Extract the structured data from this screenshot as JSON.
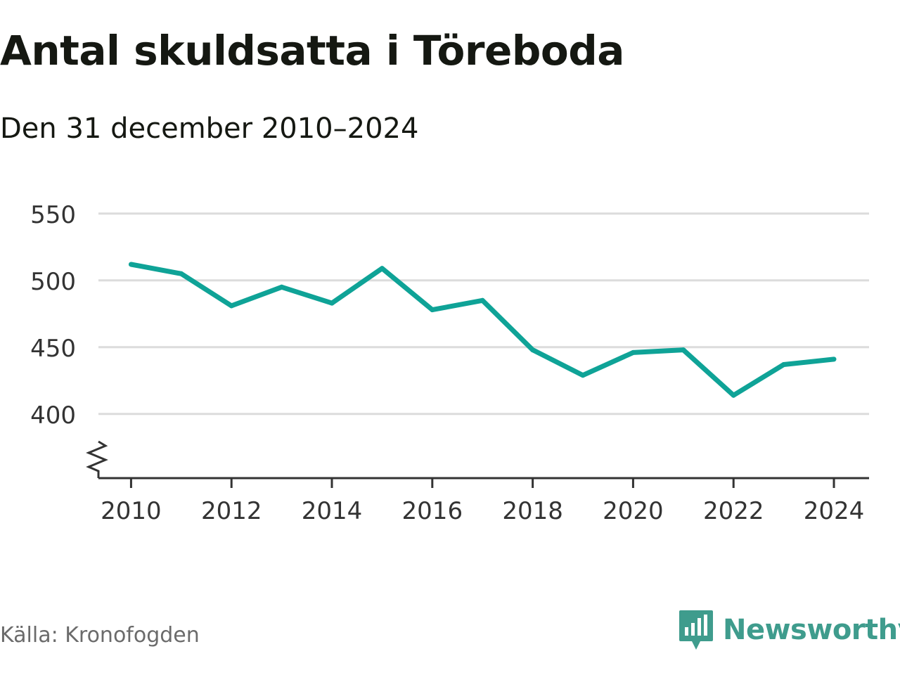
{
  "title": "Antal skuldsatta i Töreboda",
  "subtitle": "Den 31 december 2010–2024",
  "source": "Källa: Kronofogden",
  "brand": {
    "name": "Newsworthy",
    "icon": "newsworthy-logo-icon",
    "color": "#3f9c8d"
  },
  "colors": {
    "line": "#0fa397",
    "grid": "#dcdcdc",
    "axis": "#333333",
    "tick_label": "#333333"
  },
  "chart_data": {
    "type": "line",
    "x": [
      2010,
      2011,
      2012,
      2013,
      2014,
      2015,
      2016,
      2017,
      2018,
      2019,
      2020,
      2021,
      2022,
      2023,
      2024
    ],
    "series": [
      {
        "values": [
          512,
          505,
          481,
          495,
          483,
          509,
          478,
          485,
          448,
          429,
          446,
          448,
          414,
          437,
          441
        ]
      }
    ],
    "x_ticks": [
      2010,
      2012,
      2014,
      2016,
      2018,
      2020,
      2022,
      2024
    ],
    "x_tick_labels": [
      "2010",
      "2012",
      "2014",
      "2016",
      "2018",
      "2020",
      "2022",
      "2024"
    ],
    "y_ticks": [
      400,
      450,
      500,
      550
    ],
    "y_tick_labels": [
      "400",
      "450",
      "500",
      "550"
    ],
    "xlim": [
      2009.35,
      2024.7
    ],
    "ylim": [
      352,
      552
    ],
    "y_axis_break": true,
    "grid": "horizontal",
    "legend": "none"
  }
}
